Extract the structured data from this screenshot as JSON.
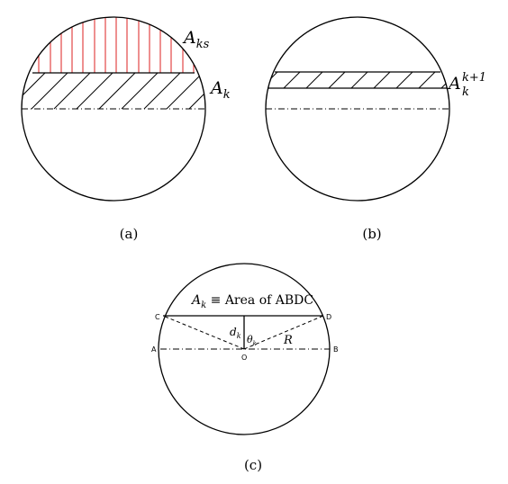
{
  "panels": [
    {
      "caption": "(a)",
      "labels": [
        {
          "base": "A",
          "sub": "ks",
          "sup": ""
        },
        {
          "base": "A",
          "sub": "k",
          "sup": ""
        }
      ]
    },
    {
      "caption": "(b)",
      "labels": [
        {
          "base": "A",
          "sub": "k",
          "sup": "k+1"
        }
      ]
    },
    {
      "caption": "(c)",
      "title": {
        "base": "A",
        "sub": "k",
        "rest": " ≡ Area of ABDC"
      },
      "points": [
        "C",
        "D",
        "A",
        "B",
        "O"
      ],
      "symbols": {
        "d": {
          "base": "d",
          "sub": "k"
        },
        "theta": {
          "base": "θ",
          "sub": "k"
        },
        "radius": "R"
      }
    }
  ]
}
